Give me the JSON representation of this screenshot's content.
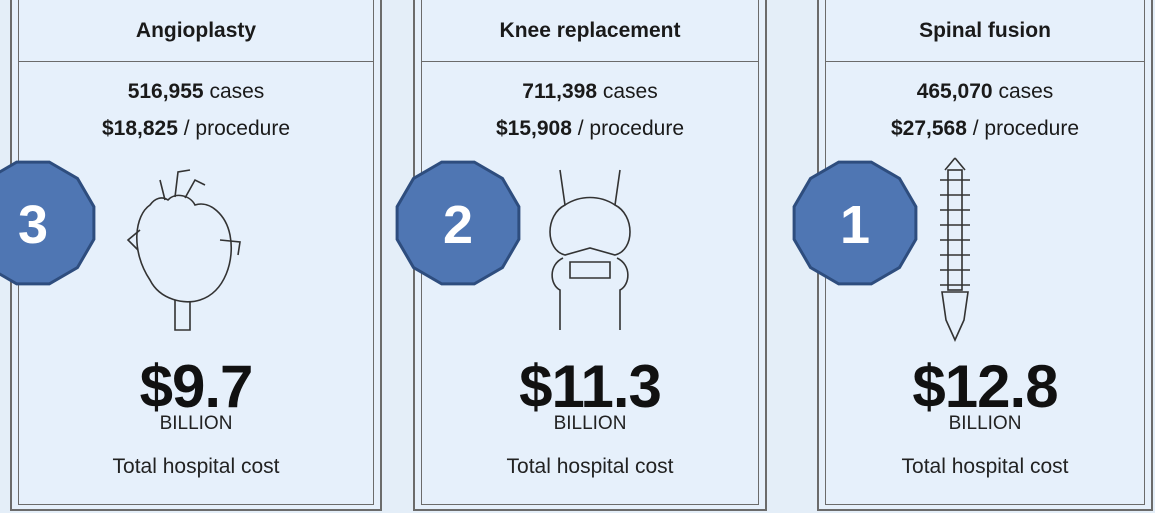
{
  "cards": [
    {
      "title": "Angioplasty",
      "cases": "516,955",
      "cases_unit": "cases",
      "price": "$18,825",
      "price_unit": "/ procedure",
      "total": "$9.7",
      "total_unit": "BILLION",
      "total_label": "Total hospital cost",
      "rank": "3"
    },
    {
      "title": "Knee replacement",
      "cases": "711,398",
      "cases_unit": "cases",
      "price": "$15,908",
      "price_unit": "/ procedure",
      "total": "$11.3",
      "total_unit": "BILLION",
      "total_label": "Total hospital cost",
      "rank": "2"
    },
    {
      "title": "Spinal fusion",
      "cases": "465,070",
      "cases_unit": "cases",
      "price": "$27,568",
      "price_unit": "/ procedure",
      "total": "$12.8",
      "total_unit": "BILLION",
      "total_label": "Total hospital cost",
      "rank": "1"
    }
  ]
}
